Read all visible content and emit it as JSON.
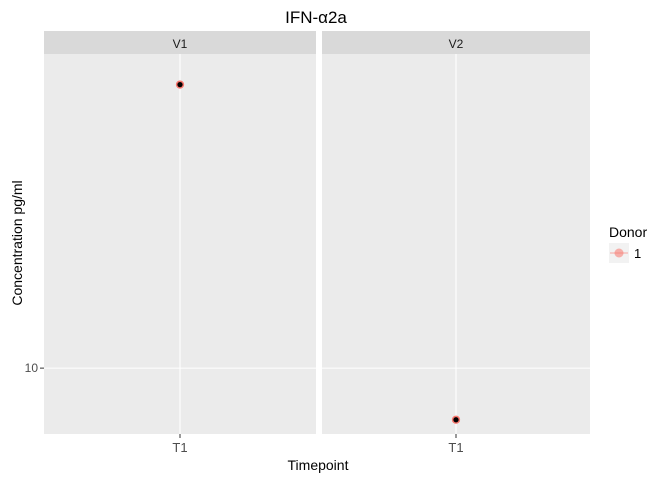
{
  "chart_data": {
    "type": "scatter",
    "title": "IFN-α2a",
    "xlabel": "Timepoint",
    "ylabel": "Concentration pg/ml",
    "y_scale": "log10",
    "ylim": [
      9.72,
      11.45
    ],
    "y_ticks": [
      10
    ],
    "y_tick_labels": [
      "10"
    ],
    "x_categories": [
      "T1"
    ],
    "grid": true,
    "facets": [
      {
        "label": "V1",
        "points": [
          {
            "x": "T1",
            "y": 11.3,
            "donor": "1"
          }
        ]
      },
      {
        "label": "V2",
        "points": [
          {
            "x": "T1",
            "y": 9.78,
            "donor": "1"
          }
        ]
      }
    ],
    "legend": {
      "title": "Donor",
      "entries": [
        "1"
      ],
      "position": "right"
    },
    "colors": {
      "panel_bg": "#ebebeb",
      "strip_bg": "#d9d9d9",
      "grid": "#ffffff",
      "point_fill": "#000000",
      "point_outline": "#f8766d",
      "legend_key_color": "#f8766d"
    }
  }
}
